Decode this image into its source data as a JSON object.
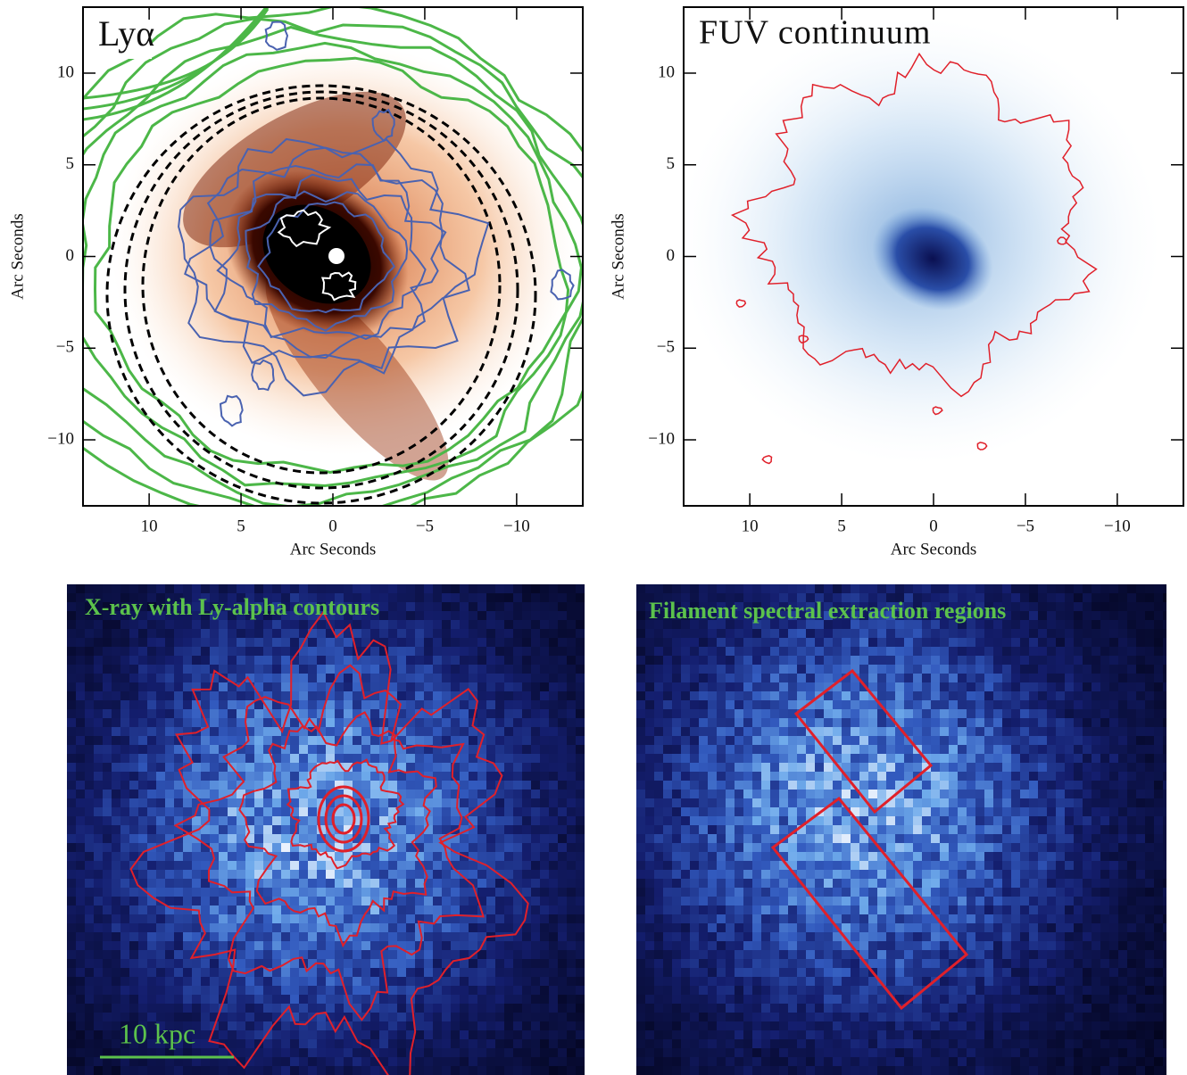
{
  "panels": [
    {
      "label": "Lyα",
      "x_label": "Arc Seconds",
      "y_label": "Arc Seconds",
      "xlim": [
        13.6,
        -13.6
      ],
      "ylim": [
        -13.6,
        13.6
      ],
      "xticks": [
        10,
        5,
        0,
        {
          "value": -5,
          "label": "−5"
        },
        {
          "value": -10,
          "label": "−10"
        }
      ],
      "yticks": [
        {
          "value": -10,
          "label": "−10"
        },
        {
          "value": -5,
          "label": "−5"
        },
        0,
        5,
        10
      ]
    },
    {
      "label": "FUV continuum",
      "x_label": "Arc Seconds",
      "y_label": "Arc Seconds",
      "xlim": [
        13.6,
        -13.6
      ],
      "ylim": [
        -13.6,
        13.6
      ],
      "xticks": [
        10,
        5,
        0,
        {
          "value": -5,
          "label": "−5"
        },
        {
          "value": -10,
          "label": "−10"
        }
      ],
      "yticks": [
        {
          "value": -10,
          "label": "−10"
        },
        {
          "value": -5,
          "label": "−5"
        },
        0,
        5,
        10
      ]
    },
    {
      "label": "X-ray with Ly-alpha contours",
      "scale_bar": "10 kpc"
    },
    {
      "label": "Filament spectral extraction regions"
    }
  ]
}
